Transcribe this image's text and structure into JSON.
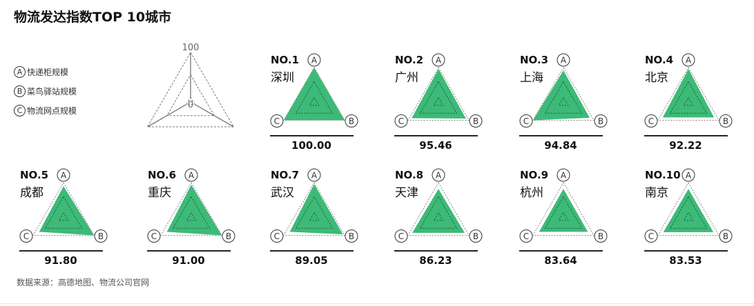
{
  "chart_data": {
    "type": "radar",
    "title": "物流发达指数TOP 10城市",
    "source": "数据来源：高德地图、物流公司官网",
    "axes": [
      {
        "key": "A",
        "label": "快递柜规模"
      },
      {
        "key": "B",
        "label": "菜鸟驿站规模"
      },
      {
        "key": "C",
        "label": "物流网点规模"
      }
    ],
    "scale": {
      "min_label": "0",
      "max_label": "100",
      "range": [
        0,
        100
      ]
    },
    "fill_color": "#3dba78",
    "cities": [
      {
        "rank": "NO.1",
        "name": "深圳",
        "score": "100.00",
        "A": 100,
        "B": 100,
        "C": 100
      },
      {
        "rank": "NO.2",
        "name": "广州",
        "score": "95.46",
        "A": 96,
        "B": 90,
        "C": 88
      },
      {
        "rank": "NO.3",
        "name": "上海",
        "score": "94.84",
        "A": 92,
        "B": 86,
        "C": 100
      },
      {
        "rank": "NO.4",
        "name": "北京",
        "score": "92.22",
        "A": 96,
        "B": 84,
        "C": 84
      },
      {
        "rank": "NO.5",
        "name": "成都",
        "score": "91.80",
        "A": 90,
        "B": 100,
        "C": 80
      },
      {
        "rank": "NO.6",
        "name": "重庆",
        "score": "91.00",
        "A": 94,
        "B": 100,
        "C": 80
      },
      {
        "rank": "NO.7",
        "name": "武汉",
        "score": "89.05",
        "A": 96,
        "B": 94,
        "C": 80
      },
      {
        "rank": "NO.8",
        "name": "天津",
        "score": "86.23",
        "A": 82,
        "B": 86,
        "C": 86
      },
      {
        "rank": "NO.9",
        "name": "杭州",
        "score": "83.64",
        "A": 82,
        "B": 80,
        "C": 80
      },
      {
        "rank": "NO.10",
        "name": "南京",
        "score": "83.53",
        "A": 82,
        "B": 82,
        "C": 82
      }
    ]
  }
}
